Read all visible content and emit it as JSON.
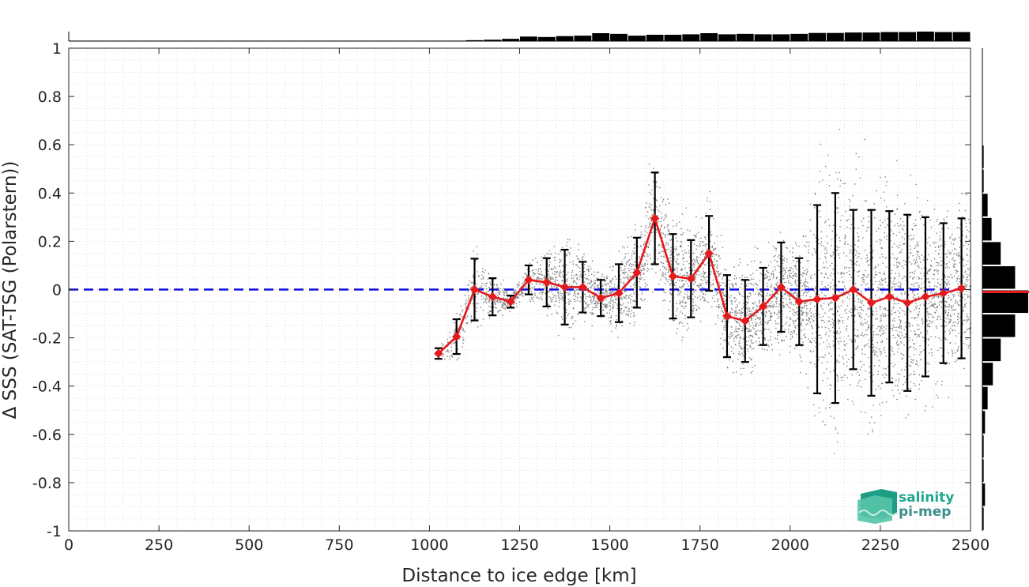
{
  "chart_data": {
    "type": "scatter",
    "xlabel": "Distance to ice edge [km]",
    "ylabel": "Δ SSS (SAT-TSG (Polarstern))",
    "xlim": [
      0,
      2500
    ],
    "ylim": [
      -1,
      1
    ],
    "xticks": [
      0,
      250,
      500,
      750,
      1000,
      1250,
      1500,
      1750,
      2000,
      2250,
      2500
    ],
    "yticks": [
      -1,
      -0.8,
      -0.6,
      -0.4,
      -0.2,
      0,
      0.2,
      0.4,
      0.6,
      0.8,
      1
    ],
    "ytick_labels": [
      "-1",
      "-0.8",
      "-0.6",
      "-0.4",
      "-0.2",
      "0",
      "0.2",
      "0.4",
      "0.6",
      "0.8",
      "1"
    ],
    "grid": true,
    "reference_line": {
      "y": 0,
      "style": "dashed",
      "color": "#1010e0"
    },
    "binned_mean": {
      "color": "#e41a1c",
      "x": [
        1025,
        1075,
        1125,
        1175,
        1225,
        1275,
        1325,
        1375,
        1425,
        1475,
        1525,
        1575,
        1625,
        1675,
        1725,
        1775,
        1825,
        1875,
        1925,
        1975,
        2025,
        2075,
        2125,
        2175,
        2225,
        2275,
        2325,
        2375,
        2425,
        2475
      ],
      "y": [
        -0.265,
        -0.195,
        0.0,
        -0.03,
        -0.05,
        0.04,
        0.03,
        0.01,
        0.01,
        -0.035,
        -0.015,
        0.07,
        0.295,
        0.055,
        0.045,
        0.15,
        -0.11,
        -0.13,
        -0.07,
        0.01,
        -0.05,
        -0.04,
        -0.035,
        0.0,
        -0.055,
        -0.03,
        -0.055,
        -0.03,
        -0.015,
        0.005
      ],
      "std": [
        0.022,
        0.072,
        0.128,
        0.077,
        0.025,
        0.06,
        0.1,
        0.155,
        0.105,
        0.075,
        0.12,
        0.145,
        0.19,
        0.175,
        0.16,
        0.155,
        0.17,
        0.17,
        0.16,
        0.185,
        0.18,
        0.39,
        0.435,
        0.33,
        0.385,
        0.355,
        0.365,
        0.33,
        0.29,
        0.29
      ]
    },
    "scatter": {
      "color": "#808080",
      "x_range": [
        1030,
        2500
      ]
    },
    "top_histogram": {
      "bin_width": 50,
      "bins_start": [
        0,
        50,
        100,
        150,
        200,
        250,
        300,
        350,
        400,
        450,
        500,
        550,
        600,
        650,
        700,
        750,
        800,
        850,
        900,
        950,
        1000,
        1050,
        1100,
        1150,
        1200,
        1250,
        1300,
        1350,
        1400,
        1450,
        1500,
        1550,
        1600,
        1650,
        1700,
        1750,
        1800,
        1850,
        1900,
        1950,
        2000,
        2050,
        2100,
        2150,
        2200,
        2250,
        2300,
        2350,
        2400,
        2450
      ],
      "counts": [
        2,
        2,
        2,
        2,
        2,
        2,
        2,
        2,
        2,
        2,
        2,
        2,
        2,
        2,
        2,
        2,
        2,
        2,
        2,
        2,
        2,
        2,
        4,
        6,
        10,
        20,
        18,
        22,
        24,
        35,
        32,
        24,
        28,
        28,
        30,
        35,
        30,
        32,
        30,
        30,
        32,
        36,
        36,
        38,
        38,
        40,
        40,
        42,
        40,
        40
      ]
    },
    "right_histogram": {
      "bins_center": [
        -0.95,
        -0.85,
        -0.75,
        -0.65,
        -0.55,
        -0.45,
        -0.35,
        -0.25,
        -0.15,
        -0.05,
        0.05,
        0.15,
        0.25,
        0.35,
        0.45,
        0.55,
        0.65,
        0.75,
        0.85,
        0.95
      ],
      "counts": [
        1,
        2,
        1,
        1,
        2,
        4,
        8,
        14,
        25,
        35,
        25,
        14,
        7,
        4,
        1,
        1,
        0,
        0,
        0,
        0
      ],
      "mean_line": -0.01,
      "mean_line_color": "#e41a1c"
    }
  },
  "logo": {
    "line1": "salinity",
    "line2": "pi-mep"
  },
  "colors": {
    "mean": "#e41a1c",
    "zero_line": "#1010e0",
    "scatter": "#808080",
    "axes": "#262626"
  }
}
